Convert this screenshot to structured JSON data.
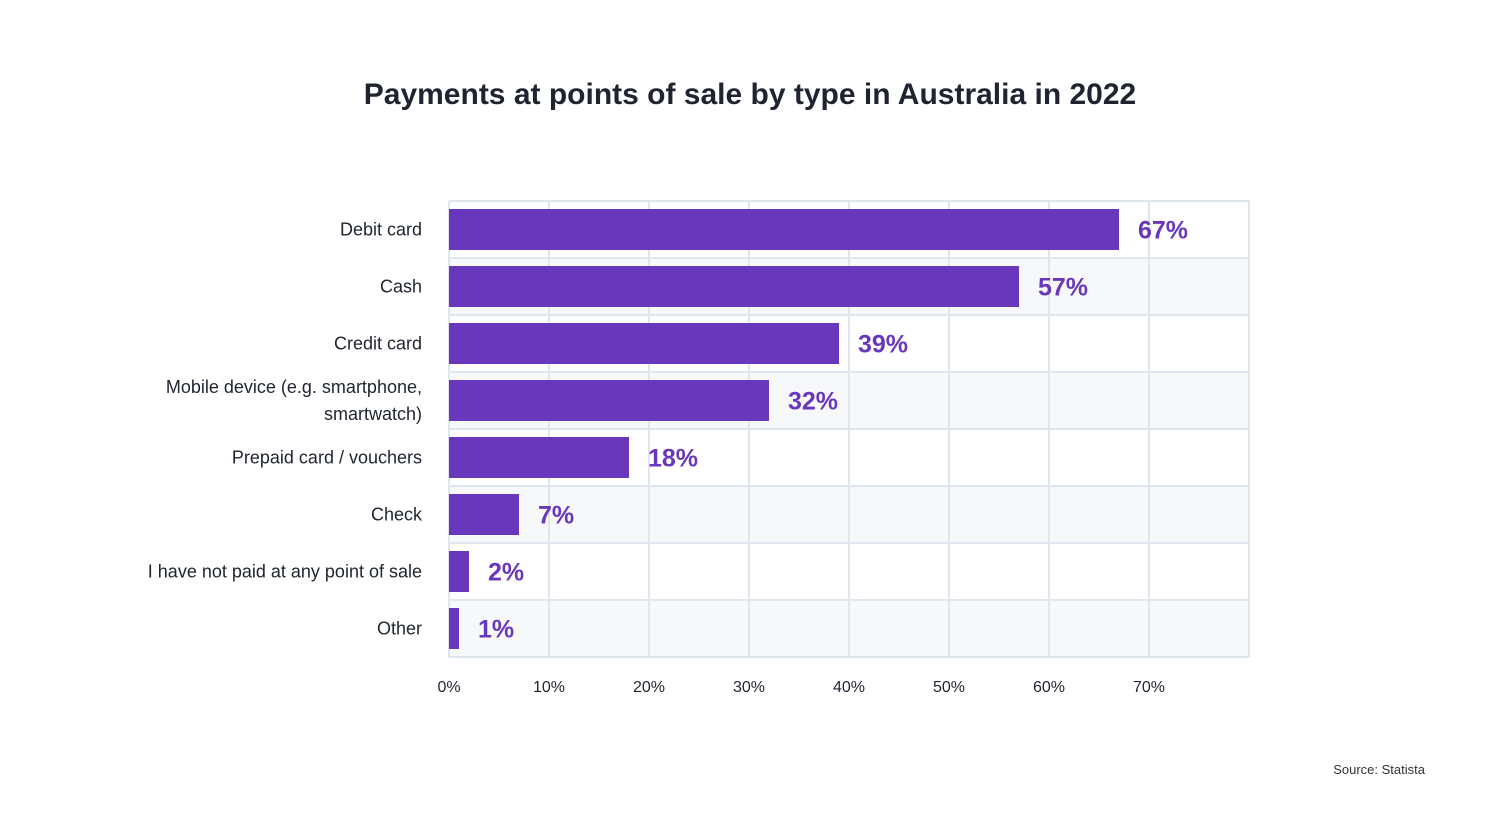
{
  "chart_data": {
    "type": "bar",
    "orientation": "horizontal",
    "title": "Payments at points of sale by type in Australia in 2022",
    "categories": [
      [
        "Debit card"
      ],
      [
        "Cash"
      ],
      [
        "Credit card"
      ],
      [
        "Mobile device (e.g. smartphone,",
        "smartwatch)"
      ],
      [
        "Prepaid card / vouchers"
      ],
      [
        "Check"
      ],
      [
        "I have not paid at any point of sale"
      ],
      [
        "Other"
      ]
    ],
    "values": [
      67,
      57,
      39,
      32,
      18,
      7,
      2,
      1
    ],
    "data_labels": [
      "67%",
      "57%",
      "39%",
      "32%",
      "18%",
      "7%",
      "2%",
      "1%"
    ],
    "xlim": [
      0,
      80
    ],
    "x_ticks": [
      "0%",
      "10%",
      "20%",
      "30%",
      "40%",
      "50%",
      "60%",
      "70%"
    ],
    "grid": true,
    "colors": {
      "bar": "#6937bb",
      "label": "#6937bb",
      "grid": "#dfe6ee",
      "band": "#f7f8fa"
    }
  },
  "source": "Source: Statista"
}
